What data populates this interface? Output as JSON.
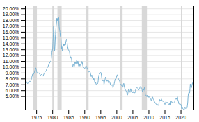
{
  "chart_data": {
    "type": "line",
    "color": "#7ab3d4",
    "grid": true,
    "xlim": [
      1971.5,
      2024.0
    ],
    "ylim": [
      0.027,
      0.205
    ],
    "xticks": [
      1975,
      1980,
      1985,
      1990,
      1995,
      2000,
      2005,
      2010,
      2015,
      2020
    ],
    "yticks": [
      {
        "value": 0.05,
        "label": "5.00%"
      },
      {
        "value": 0.06,
        "label": "6.00%"
      },
      {
        "value": 0.07,
        "label": "7.00%"
      },
      {
        "value": 0.08,
        "label": "8.00%"
      },
      {
        "value": 0.09,
        "label": "9.00%"
      },
      {
        "value": 0.1,
        "label": "10.00%"
      },
      {
        "value": 0.11,
        "label": "11.00%"
      },
      {
        "value": 0.12,
        "label": "12.00%"
      },
      {
        "value": 0.13,
        "label": "13.00%"
      },
      {
        "value": 0.14,
        "label": "14.00%"
      },
      {
        "value": 0.15,
        "label": "15.00%"
      },
      {
        "value": 0.16,
        "label": "16.00%"
      },
      {
        "value": 0.17,
        "label": "17.00%"
      },
      {
        "value": 0.18,
        "label": "18.00%"
      },
      {
        "value": 0.19,
        "label": "19.00%"
      },
      {
        "value": 0.2,
        "label": "20.00%"
      }
    ],
    "bands": {
      "color": "#d8d8d8",
      "ranges": [
        [
          1973.9,
          1975.2
        ],
        [
          1980.0,
          1980.5
        ],
        [
          1981.6,
          1982.9
        ],
        [
          1990.6,
          1991.3
        ],
        [
          2001.2,
          2001.9
        ],
        [
          2007.9,
          2009.5
        ],
        [
          2020.1,
          2020.5
        ]
      ]
    },
    "x": [
      1971.58,
      1971.75,
      1972.0,
      1972.25,
      1972.5,
      1972.75,
      1973.0,
      1973.25,
      1973.5,
      1973.75,
      1974.0,
      1974.25,
      1974.5,
      1974.75,
      1975.0,
      1975.25,
      1975.5,
      1975.75,
      1976.0,
      1976.25,
      1976.5,
      1976.75,
      1977.0,
      1977.25,
      1977.5,
      1977.75,
      1978.0,
      1978.25,
      1978.5,
      1978.75,
      1979.0,
      1979.25,
      1979.5,
      1979.75,
      1980.0,
      1980.1,
      1980.2,
      1980.3,
      1980.4,
      1980.5,
      1980.6,
      1980.7,
      1980.8,
      1980.9,
      1981.0,
      1981.1,
      1981.2,
      1981.3,
      1981.4,
      1981.5,
      1981.6,
      1981.7,
      1981.8,
      1981.9,
      1982.0,
      1982.1,
      1982.2,
      1982.3,
      1982.4,
      1982.5,
      1982.6,
      1982.7,
      1982.8,
      1982.9,
      1983.0,
      1983.1,
      1983.2,
      1983.3,
      1983.4,
      1983.5,
      1983.6,
      1983.7,
      1983.8,
      1983.9,
      1984.0,
      1984.1,
      1984.2,
      1984.3,
      1984.4,
      1984.5,
      1984.6,
      1984.7,
      1984.8,
      1984.9,
      1985.0,
      1985.1,
      1985.2,
      1985.3,
      1985.4,
      1985.5,
      1985.6,
      1985.7,
      1985.8,
      1985.9,
      1986.0,
      1986.1,
      1986.2,
      1986.3,
      1986.4,
      1986.5,
      1986.6,
      1986.7,
      1986.8,
      1986.9,
      1987.0,
      1987.1,
      1987.2,
      1987.3,
      1987.4,
      1987.5,
      1987.6,
      1987.7,
      1987.8,
      1987.9,
      1988.0,
      1988.1,
      1988.2,
      1988.3,
      1988.4,
      1988.5,
      1988.6,
      1988.7,
      1988.8,
      1988.9,
      1989.0,
      1989.1,
      1989.2,
      1989.3,
      1989.4,
      1989.5,
      1989.6,
      1989.7,
      1989.8,
      1989.9,
      1990.0,
      1990.1,
      1990.2,
      1990.3,
      1990.4,
      1990.5,
      1990.6,
      1990.7,
      1990.8,
      1990.9,
      1991.0,
      1991.1,
      1991.2,
      1991.3,
      1991.4,
      1991.5,
      1991.6,
      1991.7,
      1991.8,
      1991.9,
      1992.0,
      1992.1,
      1992.2,
      1992.3,
      1992.4,
      1992.5,
      1992.6,
      1992.7,
      1992.8,
      1992.9,
      1993.0,
      1993.1,
      1993.2,
      1993.3,
      1993.4,
      1993.5,
      1993.6,
      1993.7,
      1993.8,
      1993.9,
      1994.0,
      1994.1,
      1994.2,
      1994.3,
      1994.4,
      1994.5,
      1994.6,
      1994.7,
      1994.8,
      1994.9,
      1995.0,
      1995.1,
      1995.2,
      1995.3,
      1995.4,
      1995.5,
      1995.6,
      1995.7,
      1995.8,
      1995.9,
      1996.0,
      1996.1,
      1996.2,
      1996.3,
      1996.4,
      1996.5,
      1996.6,
      1996.7,
      1996.8,
      1996.9,
      1997.0,
      1997.1,
      1997.2,
      1997.3,
      1997.4,
      1997.5,
      1997.6,
      1997.7,
      1997.8,
      1997.9,
      1998.0,
      1998.1,
      1998.2,
      1998.3,
      1998.4,
      1998.5,
      1998.6,
      1998.7,
      1998.8,
      1998.9,
      1999.0,
      1999.1,
      1999.2,
      1999.3,
      1999.4,
      1999.5,
      1999.6,
      1999.7,
      1999.8,
      1999.9,
      2000.0,
      2000.1,
      2000.2,
      2000.3,
      2000.4,
      2000.5,
      2000.6,
      2000.7,
      2000.8,
      2000.9,
      2001.0,
      2001.1,
      2001.2,
      2001.3,
      2001.4,
      2001.5,
      2001.6,
      2001.7,
      2001.8,
      2001.9,
      2002.0,
      2002.1,
      2002.2,
      2002.3,
      2002.4,
      2002.5,
      2002.6,
      2002.7,
      2002.8,
      2002.9,
      2003.0,
      2003.1,
      2003.2,
      2003.3,
      2003.4,
      2003.5,
      2003.6,
      2003.7,
      2003.8,
      2003.9,
      2004.0,
      2004.1,
      2004.2,
      2004.3,
      2004.4,
      2004.5,
      2004.6,
      2004.7,
      2004.8,
      2004.9,
      2005.0,
      2005.1,
      2005.2,
      2005.3,
      2005.4,
      2005.5,
      2005.6,
      2005.7,
      2005.8,
      2005.9,
      2006.0,
      2006.1,
      2006.2,
      2006.3,
      2006.4,
      2006.5,
      2006.6,
      2006.7,
      2006.8,
      2006.9,
      2007.0,
      2007.1,
      2007.2,
      2007.3,
      2007.4,
      2007.5,
      2007.6,
      2007.7,
      2007.8,
      2007.9,
      2008.0,
      2008.1,
      2008.2,
      2008.3,
      2008.4,
      2008.5,
      2008.6,
      2008.7,
      2008.8,
      2008.9,
      2009.0,
      2009.1,
      2009.2,
      2009.3,
      2009.4,
      2009.5,
      2009.6,
      2009.7,
      2009.8,
      2009.9,
      2010.0,
      2010.1,
      2010.2,
      2010.3,
      2010.4,
      2010.5,
      2010.6,
      2010.7,
      2010.8,
      2010.9,
      2011.0,
      2011.1,
      2011.2,
      2011.3,
      2011.4,
      2011.5,
      2011.6,
      2011.7,
      2011.8,
      2011.9,
      2012.0,
      2012.1,
      2012.2,
      2012.3,
      2012.4,
      2012.5,
      2012.6,
      2012.7,
      2012.8,
      2012.9,
      2013.0,
      2013.1,
      2013.2,
      2013.3,
      2013.4,
      2013.5,
      2013.6,
      2013.7,
      2013.8,
      2013.9,
      2014.0,
      2014.1,
      2014.2,
      2014.3,
      2014.4,
      2014.5,
      2014.6,
      2014.7,
      2014.8,
      2014.9,
      2015.0,
      2015.1,
      2015.2,
      2015.3,
      2015.4,
      2015.5,
      2015.6,
      2015.7,
      2015.8,
      2015.9,
      2016.0,
      2016.1,
      2016.2,
      2016.3,
      2016.4,
      2016.5,
      2016.6,
      2016.7,
      2016.8,
      2016.9,
      2017.0,
      2017.1,
      2017.2,
      2017.3,
      2017.4,
      2017.5,
      2017.6,
      2017.7,
      2017.8,
      2017.9,
      2018.0,
      2018.1,
      2018.2,
      2018.3,
      2018.4,
      2018.5,
      2018.6,
      2018.7,
      2018.8,
      2018.9,
      2019.0,
      2019.1,
      2019.2,
      2019.3,
      2019.4,
      2019.5,
      2019.6,
      2019.7,
      2019.8,
      2019.9,
      2020.0,
      2020.1,
      2020.2,
      2020.3,
      2020.4,
      2020.5,
      2020.6,
      2020.7,
      2020.8,
      2020.9,
      2021.0,
      2021.1,
      2021.2,
      2021.3,
      2021.4,
      2021.5,
      2021.6,
      2021.7,
      2021.8,
      2021.9,
      2022.0,
      2022.1,
      2022.2,
      2022.3,
      2022.4,
      2022.5,
      2022.6,
      2022.7,
      2022.8,
      2022.9,
      2023.0,
      2023.2,
      2023.4,
      2023.6,
      2023.8
    ],
    "values": [
      0.0753,
      0.076,
      0.073,
      0.072,
      0.0738,
      0.076,
      0.0753,
      0.0771,
      0.083,
      0.0882,
      0.0875,
      0.0901,
      0.0951,
      0.099,
      0.0923,
      0.0895,
      0.0896,
      0.0904,
      0.0878,
      0.0862,
      0.0879,
      0.0862,
      0.0845,
      0.0882,
      0.0905,
      0.0931,
      0.0944,
      0.0987,
      0.1,
      0.1044,
      0.1068,
      0.1089,
      0.1114,
      0.1256,
      0.1314,
      0.1442,
      0.1568,
      0.171,
      0.164,
      0.139,
      0.128,
      0.1348,
      0.1473,
      0.1565,
      0.1648,
      0.171,
      0.175,
      0.1838,
      0.1785,
      0.182,
      0.184,
      0.182,
      0.184,
      0.185,
      0.1712,
      0.165,
      0.1634,
      0.1596,
      0.153,
      0.1534,
      0.1489,
      0.139,
      0.132,
      0.135,
      0.128,
      0.128,
      0.134,
      0.138,
      0.14,
      0.136,
      0.1378,
      0.1394,
      0.138,
      0.138,
      0.138,
      0.1428,
      0.1456,
      0.1481,
      0.1465,
      0.143,
      0.1381,
      0.135,
      0.132,
      0.13,
      0.1296,
      0.1278,
      0.1282,
      0.1249,
      0.1198,
      0.1183,
      0.1168,
      0.1178,
      0.1147,
      0.1134,
      0.1084,
      0.104,
      0.1015,
      0.1014,
      0.1056,
      0.1039,
      0.1029,
      0.101,
      0.1024,
      0.1086,
      0.1087,
      0.1082,
      0.106,
      0.1063,
      0.1085,
      0.1128,
      0.1097,
      0.1064,
      0.1102,
      0.1104,
      0.1053,
      0.102,
      0.103,
      0.1041,
      0.1059,
      0.1019,
      0.1049,
      0.1049,
      0.1051,
      0.1065,
      0.1065,
      0.1099,
      0.1097,
      0.1059,
      0.1034,
      0.1004,
      0.1012,
      0.0999,
      0.099,
      0.0984,
      0.0979,
      0.0988,
      0.0993,
      0.1013,
      0.1024,
      0.1021,
      0.1006,
      0.099,
      0.0974,
      0.0978,
      0.0952,
      0.0925,
      0.092,
      0.0921,
      0.0928,
      0.0927,
      0.0916,
      0.0918,
      0.0892,
      0.0869,
      0.084,
      0.0848,
      0.0867,
      0.083,
      0.082,
      0.0824,
      0.0795,
      0.0786,
      0.0812,
      0.0802,
      0.079,
      0.075,
      0.0722,
      0.072,
      0.0741,
      0.0722,
      0.07,
      0.0701,
      0.0712,
      0.0723,
      0.0716,
      0.0733,
      0.0766,
      0.084,
      0.0862,
      0.0876,
      0.0878,
      0.0892,
      0.0895,
      0.0909,
      0.0913,
      0.0895,
      0.0859,
      0.0818,
      0.0788,
      0.0772,
      0.0768,
      0.0766,
      0.0779,
      0.0776,
      0.0703,
      0.0726,
      0.0755,
      0.0779,
      0.0811,
      0.0832,
      0.0812,
      0.079,
      0.0775,
      0.0762,
      0.0762,
      0.0779,
      0.0779,
      0.075,
      0.0736,
      0.0726,
      0.0736,
      0.0756,
      0.0742,
      0.0731,
      0.0704,
      0.071,
      0.0706,
      0.0694,
      0.0688,
      0.0697,
      0.0702,
      0.0688,
      0.0649,
      0.0667,
      0.0699,
      0.0693,
      0.072,
      0.0753,
      0.0773,
      0.0799,
      0.08,
      0.08,
      0.0807,
      0.0832,
      0.0851,
      0.0869,
      0.087,
      0.0847,
      0.0814,
      0.0806,
      0.0791,
      0.0774,
      0.0767,
      0.0765,
      0.0722,
      0.0704,
      0.07,
      0.0709,
      0.0698,
      0.0684,
      0.0691,
      0.069,
      0.066,
      0.0659,
      0.0701,
      0.072,
      0.0723,
      0.068,
      0.0661,
      0.0634,
      0.0626,
      0.0614,
      0.0601,
      0.059,
      0.0592,
      0.0567,
      0.054,
      0.0523,
      0.0541,
      0.0576,
      0.0608,
      0.0622,
      0.0624,
      0.0601,
      0.0577,
      0.057,
      0.06,
      0.0633,
      0.062,
      0.0598,
      0.058,
      0.0581,
      0.058,
      0.0575,
      0.0562,
      0.0571,
      0.0575,
      0.0593,
      0.0578,
      0.057,
      0.056,
      0.0565,
      0.0589,
      0.0629,
      0.0634,
      0.0648,
      0.0657,
      0.0652,
      0.0643,
      0.064,
      0.0637,
      0.0635,
      0.0612,
      0.0614,
      0.0621,
      0.0627,
      0.0656,
      0.067,
      0.0658,
      0.0656,
      0.0654,
      0.0641,
      0.0634,
      0.061,
      0.0575,
      0.0594,
      0.0602,
      0.062,
      0.0608,
      0.0623,
      0.0652,
      0.062,
      0.058,
      0.0526,
      0.0506,
      0.0519,
      0.0501,
      0.0515,
      0.0494,
      0.0521,
      0.0508,
      0.0507,
      0.0492,
      0.0487,
      0.0507,
      0.0504,
      0.0495,
      0.0465,
      0.0453,
      0.046,
      0.0452,
      0.0432,
      0.0432,
      0.0456,
      0.0486,
      0.0492,
      0.0489,
      0.0454,
      0.0451,
      0.0449,
      0.0415,
      0.0406,
      0.0411,
      0.0396,
      0.039,
      0.0389,
      0.037,
      0.0367,
      0.0356,
      0.0353,
      0.0366,
      0.0359,
      0.0354,
      0.0345,
      0.0352,
      0.0369,
      0.0408,
      0.045,
      0.0434,
      0.044,
      0.0428,
      0.0435,
      0.0448,
      0.0457,
      0.0443,
      0.043,
      0.0428,
      0.0416,
      0.0415,
      0.0418,
      0.0414,
      0.0402,
      0.0397,
      0.0382,
      0.0363,
      0.0377,
      0.039,
      0.0412,
      0.0401,
      0.0393,
      0.04,
      0.0398,
      0.0395,
      0.0401,
      0.0387,
      0.0365,
      0.0363,
      0.0356,
      0.0374,
      0.0383,
      0.0347,
      0.0344,
      0.035,
      0.042,
      0.042,
      0.0411,
      0.0395,
      0.0398,
      0.0402,
      0.0403,
      0.0397,
      0.0389,
      0.0383,
      0.0394,
      0.0399,
      0.0432,
      0.0444,
      0.0465,
      0.0465,
      0.0472,
      0.0453,
      0.0454,
      0.048,
      0.0494,
      0.045,
      0.0428,
      0.0415,
      0.0381,
      0.0369,
      0.0373,
      0.0376,
      0.0364,
      0.0359,
      0.0368,
      0.0364,
      0.033,
      0.0293,
      0.0315,
      0.0311,
      0.0299,
      0.0289,
      0.0283,
      0.0285,
      0.0272,
      0.0274,
      0.0305,
      0.0318,
      0.0305,
      0.0296,
      0.0289,
      0.0286,
      0.0291,
      0.0301,
      0.0307,
      0.0345,
      0.0394,
      0.049,
      0.0551,
      0.0553,
      0.0582,
      0.0567,
      0.0559,
      0.0639,
      0.0713,
      0.0671,
      0.0644,
      0.0688,
      0.0732,
      0.0718
    ]
  }
}
